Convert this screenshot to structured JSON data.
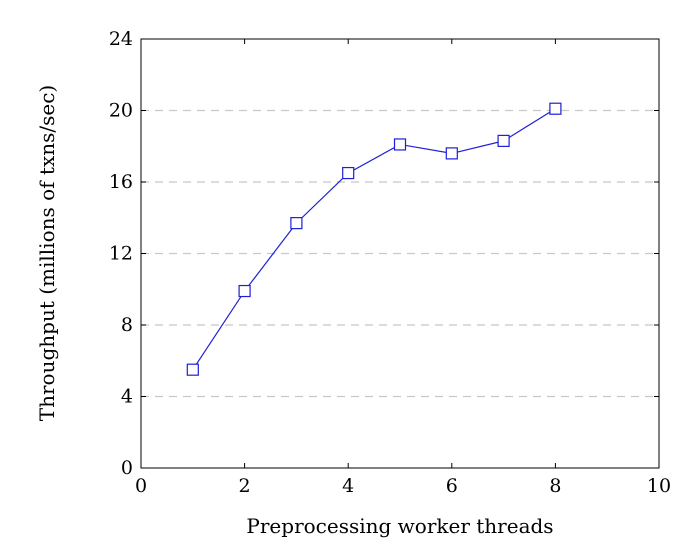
{
  "chart_data": {
    "type": "line",
    "title": "",
    "xlabel": "Preprocessing worker threads",
    "ylabel": "Throughput (millions of txns/sec)",
    "xlim": [
      0,
      10
    ],
    "ylim": [
      0,
      24
    ],
    "xticks": [
      0,
      2,
      4,
      6,
      8,
      10
    ],
    "yticks": [
      0,
      4,
      8,
      12,
      16,
      20,
      24
    ],
    "grid": "horizontal-dashed",
    "series": [
      {
        "color": "#1f1fd6",
        "marker": "square",
        "x": [
          1,
          2,
          3,
          4,
          5,
          6,
          7,
          8
        ],
        "values": [
          5.5,
          9.9,
          13.7,
          16.5,
          18.1,
          17.6,
          18.3,
          20.1
        ]
      }
    ]
  }
}
